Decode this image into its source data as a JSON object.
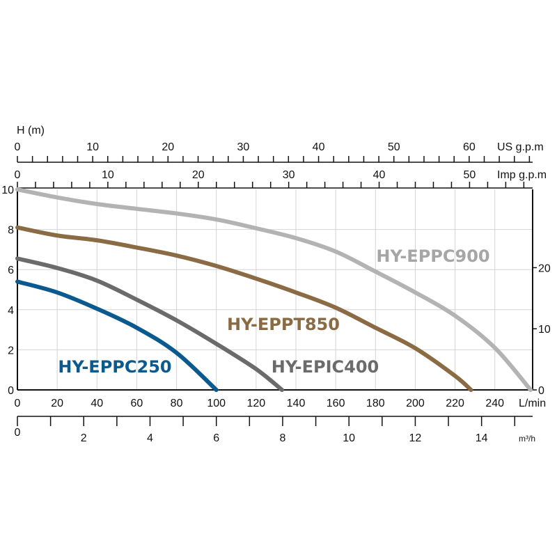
{
  "chart_data": {
    "type": "line",
    "title": "",
    "ylabel": "H (m)",
    "xlabel": "L/min",
    "xlim": [
      0,
      259
    ],
    "ylim": [
      0,
      10
    ],
    "grid": true,
    "x_ticks": [
      0,
      20,
      40,
      60,
      80,
      100,
      120,
      140,
      160,
      180,
      200,
      220,
      240
    ],
    "y_ticks": [
      0,
      2,
      4,
      6,
      8,
      10
    ],
    "secondary_axes": {
      "us_gpm": {
        "label": "US g.p.m",
        "ticks": [
          0,
          10,
          20,
          30,
          40,
          50,
          60
        ]
      },
      "imp_gpm": {
        "label": "Imp g.p.m",
        "ticks": [
          0,
          10,
          20,
          30,
          40,
          50
        ]
      },
      "m3h": {
        "label": "m³/h",
        "ticks": [
          0,
          2,
          4,
          6,
          8,
          10,
          12,
          14
        ]
      },
      "ft_right": {
        "label": "",
        "ticks": [
          0,
          10,
          20
        ]
      }
    },
    "series": [
      {
        "name": "HY-EPPC250",
        "color": "#0b5a8f",
        "x": [
          0,
          20,
          40,
          60,
          80,
          100
        ],
        "y": [
          5.4,
          4.86,
          4.05,
          3.1,
          1.85,
          0
        ]
      },
      {
        "name": "HY-EPIC400",
        "color": "#6b6b6b",
        "x": [
          0,
          20,
          40,
          60,
          80,
          100,
          120,
          133
        ],
        "y": [
          6.55,
          6.08,
          5.45,
          4.5,
          3.47,
          2.3,
          1.04,
          0
        ]
      },
      {
        "name": "HY-EPPT850",
        "color": "#8a6b44",
        "x": [
          0,
          20,
          40,
          60,
          80,
          100,
          120,
          140,
          160,
          180,
          200,
          220,
          228
        ],
        "y": [
          8.1,
          7.7,
          7.46,
          7.1,
          6.7,
          6.18,
          5.55,
          4.86,
          4.1,
          3.1,
          2.08,
          0.7,
          0
        ]
      },
      {
        "name": "HY-EPPC900",
        "color": "#b3b3b3",
        "x": [
          0,
          20,
          40,
          60,
          80,
          100,
          120,
          140,
          160,
          180,
          200,
          220,
          240,
          258
        ],
        "y": [
          10,
          9.6,
          9.27,
          9.03,
          8.8,
          8.5,
          8.06,
          7.57,
          6.9,
          5.9,
          4.86,
          3.7,
          2.1,
          0
        ]
      }
    ]
  }
}
